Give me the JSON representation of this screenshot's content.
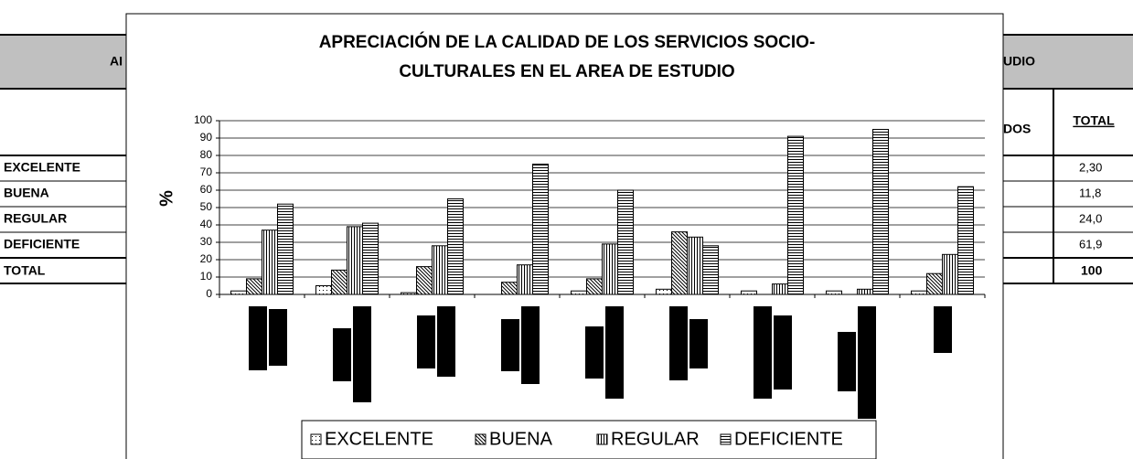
{
  "table": {
    "header_left": "AI",
    "header_right": "UDIO",
    "subheader": [
      "DOS",
      "TOTAL"
    ],
    "rows": [
      [
        "EXCELENTE",
        "2,30"
      ],
      [
        "BUENA",
        "11,8"
      ],
      [
        "REGULAR",
        "24,0"
      ],
      [
        "DEFICIENTE",
        "61,9"
      ],
      [
        "TOTAL",
        "100"
      ]
    ]
  },
  "chart_data": {
    "type": "bar",
    "title": [
      "APRECIACIÓN DE LA CALIDAD DE LOS SERVICIOS SOCIO-",
      "CULTURALES EN EL AREA DE ESTUDIO"
    ],
    "ylabel": "%",
    "categories": [
      null,
      null,
      null,
      null,
      null,
      null,
      null,
      null,
      null
    ],
    "series": [
      {
        "name": "EXCELENTE",
        "color": "#000000",
        "pattern": "dots",
        "values": [
          2,
          5,
          1,
          0,
          2,
          3,
          2,
          2,
          2
        ]
      },
      {
        "name": "BUENA",
        "color": "#000000",
        "pattern": "diagonal",
        "values": [
          9,
          14,
          16,
          7,
          9,
          36,
          0,
          0,
          12
        ]
      },
      {
        "name": "REGULAR",
        "color": "#000000",
        "pattern": "vertical",
        "values": [
          37,
          39,
          28,
          17,
          29,
          33,
          6,
          3,
          23
        ]
      },
      {
        "name": "DEFICIENTE",
        "color": "#000000",
        "pattern": "horizontal",
        "values": [
          52,
          41,
          55,
          75,
          60,
          28,
          91,
          95,
          62
        ]
      }
    ],
    "ylim": [
      0,
      100
    ],
    "yticks": [
      0,
      10,
      20,
      30,
      40,
      50,
      60,
      70,
      80,
      90,
      100
    ],
    "grid": true,
    "legend": "bottom"
  }
}
